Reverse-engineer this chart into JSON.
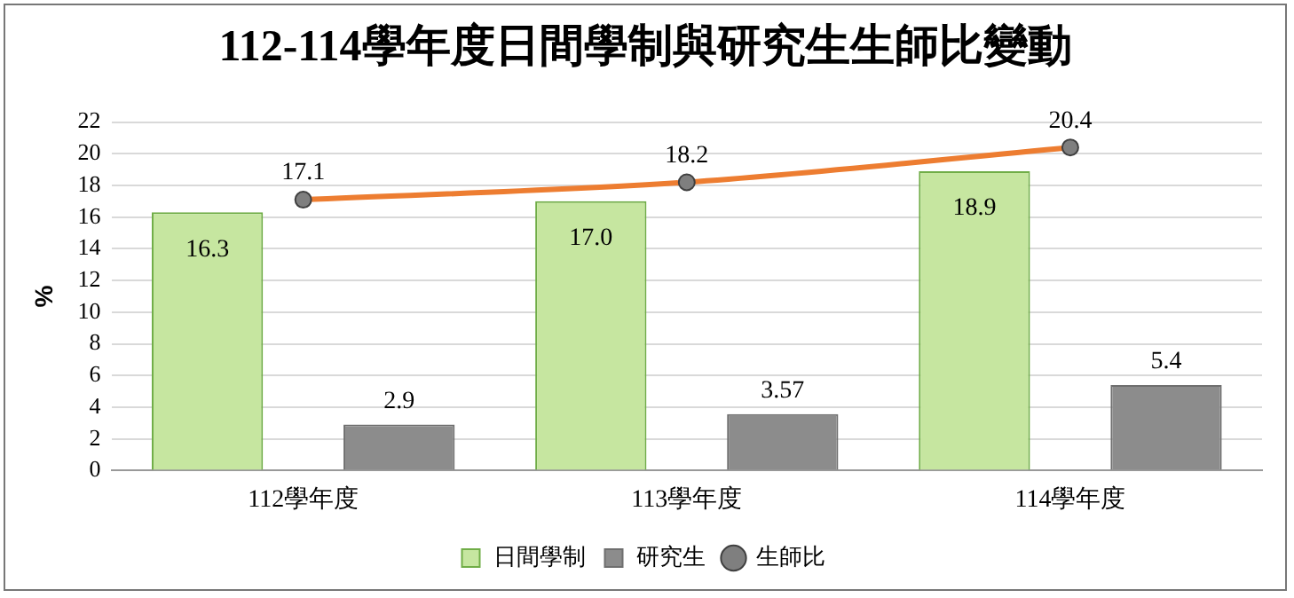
{
  "chart_data": {
    "type": "bar",
    "title": "112-114學年度日間學制與研究生生師比變動",
    "ylabel": "%",
    "categories": [
      "112學年度",
      "113學年度",
      "114學年度"
    ],
    "series": [
      {
        "name": "日間學制",
        "color": "#c6e6a0",
        "values": [
          16.3,
          17.0,
          18.9
        ],
        "value_labels": [
          "16.3",
          "17.0",
          "18.9"
        ]
      },
      {
        "name": "研究生",
        "color": "#8c8c8c",
        "values": [
          2.9,
          3.57,
          5.4
        ],
        "value_labels": [
          "2.9",
          "3.57",
          "5.4"
        ]
      },
      {
        "name": "生師比",
        "type": "line",
        "color": "#ed7d31",
        "values": [
          17.1,
          18.2,
          20.4
        ],
        "value_labels": [
          "17.1",
          "18.2",
          "20.4"
        ],
        "marker": "circle"
      }
    ],
    "ylim": [
      0,
      22
    ],
    "yticks": [
      0,
      2,
      4,
      6,
      8,
      10,
      12,
      14,
      16,
      18,
      20,
      22
    ],
    "grid": "y",
    "legend": "bottom"
  }
}
